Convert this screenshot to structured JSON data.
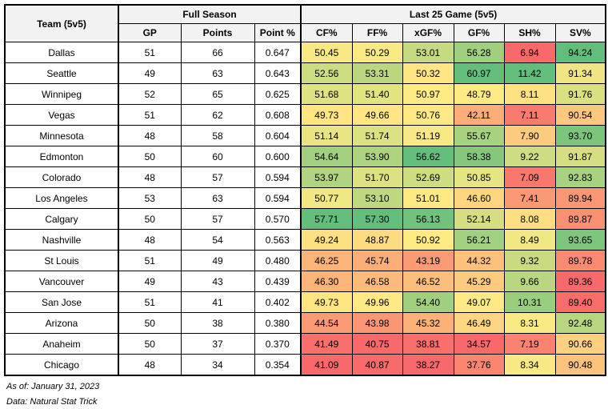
{
  "colors": {
    "header_bg": "#F2F2F2",
    "grid": "#000000",
    "text": "#000000",
    "page_bg": "#FFFFFF"
  },
  "chart_data": {
    "type": "table",
    "title": "Team 5v5 stats table with conditional-format heatmap",
    "header": {
      "team": "Team (5v5)",
      "groups": [
        {
          "label": "Full Season",
          "cols": [
            "GP",
            "Points",
            "Point %"
          ]
        },
        {
          "label": "Last 25 Game (5v5)",
          "cols": [
            "CF%",
            "FF%",
            "xGF%",
            "GF%",
            "SH%",
            "SV%"
          ]
        }
      ]
    },
    "stat_columns": [
      "CF%",
      "FF%",
      "xGF%",
      "GF%",
      "SH%",
      "SV%"
    ],
    "rows": [
      {
        "team": "Dallas",
        "gp": 51,
        "points": 66,
        "point_pct": "0.647",
        "stats": [
          50.45,
          50.29,
          53.01,
          56.28,
          6.94,
          94.24
        ]
      },
      {
        "team": "Seattle",
        "gp": 49,
        "points": 63,
        "point_pct": "0.643",
        "stats": [
          52.56,
          53.31,
          50.32,
          60.97,
          11.42,
          91.34
        ]
      },
      {
        "team": "Winnipeg",
        "gp": 52,
        "points": 65,
        "point_pct": "0.625",
        "stats": [
          51.68,
          51.4,
          50.97,
          48.79,
          8.11,
          91.76
        ]
      },
      {
        "team": "Vegas",
        "gp": 51,
        "points": 62,
        "point_pct": "0.608",
        "stats": [
          49.73,
          49.66,
          50.76,
          42.11,
          7.11,
          90.54
        ]
      },
      {
        "team": "Minnesota",
        "gp": 48,
        "points": 58,
        "point_pct": "0.604",
        "stats": [
          51.14,
          51.74,
          51.19,
          55.67,
          7.9,
          93.7
        ]
      },
      {
        "team": "Edmonton",
        "gp": 50,
        "points": 60,
        "point_pct": "0.600",
        "stats": [
          54.64,
          53.9,
          56.62,
          58.38,
          9.22,
          91.87
        ]
      },
      {
        "team": "Colorado",
        "gp": 48,
        "points": 57,
        "point_pct": "0.594",
        "stats": [
          53.97,
          51.7,
          52.69,
          50.85,
          7.09,
          92.83
        ]
      },
      {
        "team": "Los Angeles",
        "gp": 53,
        "points": 63,
        "point_pct": "0.594",
        "stats": [
          50.77,
          53.1,
          51.01,
          46.6,
          7.41,
          89.94
        ]
      },
      {
        "team": "Calgary",
        "gp": 50,
        "points": 57,
        "point_pct": "0.570",
        "stats": [
          57.71,
          57.3,
          56.13,
          52.14,
          8.08,
          89.87
        ]
      },
      {
        "team": "Nashville",
        "gp": 48,
        "points": 54,
        "point_pct": "0.563",
        "stats": [
          49.24,
          48.87,
          50.92,
          56.21,
          8.49,
          93.65
        ]
      },
      {
        "team": "St Louis",
        "gp": 51,
        "points": 49,
        "point_pct": "0.480",
        "stats": [
          46.25,
          45.74,
          43.19,
          44.32,
          9.32,
          89.78
        ]
      },
      {
        "team": "Vancouver",
        "gp": 49,
        "points": 43,
        "point_pct": "0.439",
        "stats": [
          46.3,
          46.58,
          46.52,
          45.29,
          9.66,
          89.36
        ]
      },
      {
        "team": "San Jose",
        "gp": 51,
        "points": 41,
        "point_pct": "0.402",
        "stats": [
          49.73,
          49.96,
          54.4,
          49.07,
          10.31,
          89.4
        ]
      },
      {
        "team": "Arizona",
        "gp": 50,
        "points": 38,
        "point_pct": "0.380",
        "stats": [
          44.54,
          43.98,
          45.32,
          46.49,
          8.31,
          92.48
        ]
      },
      {
        "team": "Anaheim",
        "gp": 50,
        "points": 37,
        "point_pct": "0.370",
        "stats": [
          41.49,
          40.75,
          38.81,
          34.57,
          7.19,
          90.66
        ]
      },
      {
        "team": "Chicago",
        "gp": 48,
        "points": 34,
        "point_pct": "0.354",
        "stats": [
          41.09,
          40.87,
          38.27,
          37.76,
          8.34,
          90.48
        ]
      }
    ],
    "heatmap": {
      "applies_to": [
        "CF%",
        "FF%",
        "xGF%",
        "GF%",
        "SH%",
        "SV%"
      ],
      "midpoint": "median",
      "scale": {
        "min_color": "#F8696B",
        "mid_color": "#FFEB84",
        "max_color": "#63BE7B"
      }
    },
    "footnotes": [
      "As of: January 31, 2023",
      "Data: Natural Stat Trick"
    ]
  }
}
